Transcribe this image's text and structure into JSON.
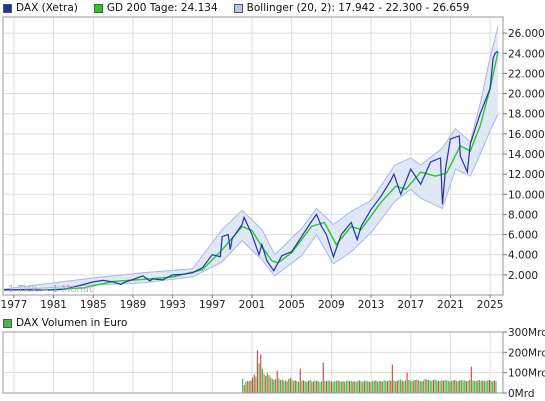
{
  "legend": [
    {
      "label": "DAX (Xetra)",
      "color": "#2233aa"
    },
    {
      "label": "GD 200 Tage: 24.134",
      "color": "#22cc22"
    },
    {
      "label": "Bollinger (20, 2): 17.942 - 22.300 - 26.659",
      "color": "#b8c8ea"
    }
  ],
  "volume_legend": {
    "label": "DAX Volumen in Euro",
    "color": "#44bb44"
  },
  "watermark": "1 Tick = 1 Monat",
  "colors": {
    "price": "#2233aa",
    "sma": "#22cc22",
    "band_fill": "#dde6f6",
    "band_line": "#a8b8e0",
    "vol_up": "#44bb44",
    "vol_down": "#dd4444",
    "grid": "#dddddd"
  },
  "chart_data": [
    {
      "type": "line",
      "title": "",
      "x_ticks": [
        "1977",
        "1981",
        "1985",
        "1989",
        "1993",
        "1997",
        "2001",
        "2005",
        "2009",
        "2013",
        "2017",
        "2021",
        "2025"
      ],
      "y_ticks": [
        "2.000",
        "4.000",
        "6.000",
        "8.000",
        "10.000",
        "12.000",
        "14.000",
        "16.000",
        "18.000",
        "20.000",
        "22.000",
        "24.000",
        "26.000"
      ],
      "xlim": [
        1975.9,
        2026.3
      ],
      "ylim": [
        0,
        27600
      ],
      "grid": true,
      "legend_position": "top-left",
      "series": [
        {
          "name": "DAX (Xetra)",
          "x": [
            1976,
            1978,
            1980,
            1982,
            1983,
            1985,
            1986,
            1987,
            1987.8,
            1988,
            1989,
            1990,
            1990.7,
            1991,
            1992,
            1993,
            1994,
            1995,
            1996,
            1997,
            1997.8,
            1998,
            1998.6,
            1998.8,
            1999,
            2000,
            2000.2,
            2001,
            2001.7,
            2002,
            2002.5,
            2003.2,
            2004,
            2005,
            2006,
            2007,
            2007.5,
            2008,
            2008.5,
            2009.2,
            2010,
            2011,
            2011.6,
            2012,
            2013,
            2014,
            2015,
            2015.3,
            2016,
            2017,
            2018,
            2019,
            2020,
            2020.2,
            2020.5,
            2021,
            2021.9,
            2022,
            2022.7,
            2023,
            2024,
            2025,
            2025.3,
            2025.5,
            2025.8
          ],
          "values": [
            520,
            540,
            480,
            560,
            780,
            1300,
            1450,
            1300,
            1050,
            1200,
            1550,
            1900,
            1400,
            1600,
            1500,
            2000,
            2050,
            2200,
            2700,
            4000,
            3800,
            5800,
            6000,
            4500,
            5600,
            7000,
            7700,
            6000,
            4000,
            5000,
            3400,
            2400,
            3900,
            4300,
            5800,
            7300,
            8000,
            6800,
            6000,
            3800,
            6000,
            7200,
            5500,
            6800,
            8500,
            9800,
            11400,
            12000,
            10000,
            12500,
            11000,
            13200,
            13600,
            9000,
            12500,
            15500,
            15800,
            13800,
            12200,
            15000,
            18000,
            20500,
            23500,
            24000,
            24200
          ]
        },
        {
          "name": "GD 200 Tage: 24.134",
          "x": [
            1976,
            1980,
            1984,
            1987,
            1990,
            1993,
            1996,
            1998,
            2000,
            2001,
            2002,
            2003,
            2003.6,
            2005,
            2007,
            2008.3,
            2009.5,
            2011,
            2012,
            2014,
            2015.5,
            2016.5,
            2018,
            2019.5,
            2020.6,
            2022,
            2023,
            2024,
            2025,
            2025.8
          ],
          "values": [
            520,
            510,
            700,
            1350,
            1550,
            1800,
            2500,
            4500,
            6800,
            6400,
            4800,
            3400,
            3200,
            4200,
            6800,
            7200,
            5000,
            6800,
            6500,
            9200,
            10800,
            10500,
            12200,
            11800,
            12100,
            14800,
            14300,
            16800,
            20500,
            24134
          ]
        },
        {
          "name": "Bollinger (20, 2): 17.942 - 22.300 - 26.659",
          "x": [
            1976,
            1985,
            1990,
            1995,
            1998,
            2000,
            2002,
            2003.3,
            2006,
            2007.5,
            2009.2,
            2011,
            2013,
            2015.4,
            2017,
            2018,
            2020.2,
            2021.5,
            2023,
            2024,
            2025,
            2025.8
          ],
          "values": [
            600,
            1700,
            2200,
            2600,
            6500,
            8400,
            6500,
            4000,
            6600,
            8600,
            7000,
            8300,
            9400,
            12900,
            13600,
            12900,
            14600,
            16500,
            15200,
            19000,
            23600,
            26659
          ]
        },
        {
          "name": "Bollinger lower",
          "x": [
            1976,
            1985,
            1990,
            1995,
            1998,
            2000,
            2002,
            2003.3,
            2006,
            2007.5,
            2009.2,
            2011,
            2013,
            2015.4,
            2017,
            2018,
            2020.2,
            2021.5,
            2023,
            2024,
            2025,
            2025.8
          ],
          "values": [
            440,
            1000,
            1200,
            1800,
            3300,
            5400,
            3500,
            1900,
            3900,
            6000,
            3100,
            4300,
            6200,
            9300,
            10500,
            9600,
            8600,
            12500,
            11800,
            14000,
            16300,
            17942
          ]
        }
      ]
    },
    {
      "type": "bar",
      "title": "",
      "y_ticks": [
        "0Mrd",
        "100Mrd",
        "200Mrd",
        "300Mrd"
      ],
      "ylim": [
        0,
        300
      ],
      "xlim": [
        1975.9,
        2026.3
      ],
      "x_start": 2000.0,
      "x_end": 2025.7,
      "values": [
        70,
        40,
        55,
        60,
        58,
        62,
        75,
        90,
        80,
        210,
        145,
        190,
        120,
        95,
        85,
        100,
        88,
        76,
        70,
        65,
        68,
        110,
        72,
        64,
        66,
        60,
        62,
        58,
        70,
        75,
        65,
        60,
        62,
        58,
        55,
        120,
        60,
        62,
        58,
        55,
        60,
        64,
        58,
        56,
        62,
        60,
        58,
        54,
        58,
        150,
        60,
        58,
        62,
        60,
        56,
        54,
        58,
        60,
        62,
        58,
        56,
        58,
        54,
        60,
        62,
        58,
        60,
        56,
        58,
        54,
        60,
        62,
        58,
        55,
        60,
        62,
        58,
        56,
        54,
        60,
        58,
        62,
        56,
        60,
        58,
        56,
        62,
        60,
        58,
        64,
        60,
        140,
        62,
        58,
        60,
        64,
        66,
        60,
        58,
        62,
        100,
        64,
        60,
        58,
        62,
        64,
        66,
        62,
        60,
        58,
        62,
        70,
        66,
        64,
        62,
        60,
        64,
        66,
        62,
        60,
        58,
        62,
        60,
        64,
        62,
        60,
        58,
        60,
        62,
        64,
        60,
        58,
        62,
        64,
        60,
        62,
        58,
        60,
        64,
        130,
        62,
        60,
        58,
        62,
        64,
        60,
        62,
        58,
        60,
        62,
        64,
        60,
        58,
        62,
        60
      ],
      "up": [
        1,
        1,
        0,
        1,
        0,
        1,
        0,
        0,
        1,
        0,
        1,
        0,
        1,
        1,
        0,
        1,
        0,
        1,
        1,
        0,
        1,
        0,
        1,
        1,
        0,
        1,
        1,
        0,
        1,
        0,
        1,
        1,
        0,
        1,
        1,
        0,
        1,
        0,
        1,
        1,
        0,
        1,
        1,
        0,
        1,
        0,
        1,
        1,
        1,
        0,
        1,
        0,
        1,
        1,
        0,
        1,
        1,
        1,
        0,
        1,
        1,
        0,
        1,
        1,
        1,
        0,
        1,
        0,
        1,
        1,
        1,
        0,
        1,
        1,
        0,
        1,
        1,
        0,
        1,
        1,
        1,
        0,
        1,
        1,
        0,
        1,
        1,
        1,
        0,
        1,
        0,
        0,
        1,
        1,
        0,
        1,
        1,
        0,
        1,
        1,
        0,
        1,
        1,
        1,
        0,
        1,
        0,
        1,
        1,
        0,
        1,
        1,
        0,
        1,
        1,
        1,
        0,
        1,
        1,
        0,
        1,
        1,
        0,
        1,
        1,
        1,
        0,
        1,
        1,
        0,
        1,
        1,
        0,
        1,
        1,
        1,
        0,
        1,
        1,
        0,
        1,
        1,
        1,
        0,
        1,
        1,
        0,
        1,
        1,
        1,
        0,
        1,
        1,
        0,
        1
      ]
    }
  ]
}
